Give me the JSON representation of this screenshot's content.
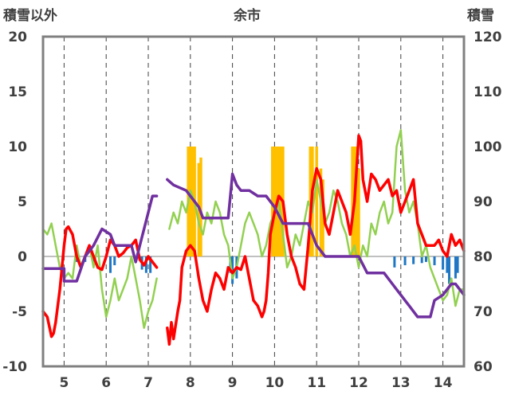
{
  "chart_data": {
    "type": "line",
    "title": "余市",
    "left_axis_label": "積雪以外",
    "right_axis_label": "積雪",
    "ylim_left": [
      -10,
      20
    ],
    "ylim_right": [
      60,
      120
    ],
    "y_ticks_left": [
      "-10",
      "-5",
      "0",
      "5",
      "10",
      "15",
      "20"
    ],
    "y_ticks_right": [
      "60",
      "70",
      "80",
      "90",
      "100",
      "110",
      "120"
    ],
    "xlim": [
      4.5,
      14.5
    ],
    "x_ticks": [
      "5",
      "6",
      "7",
      "8",
      "9",
      "10",
      "11",
      "12",
      "13",
      "14"
    ],
    "grid": "vertical dashed at day boundaries",
    "colors": {
      "red_series": "#ff0000",
      "green_series": "#92d050",
      "purple_series": "#7030a0",
      "orange_bars": "#ffc000",
      "blue_bars": "#1f77c4",
      "frame": "#808080"
    },
    "series": [
      {
        "axis": "left",
        "color": "red",
        "x": [
          4.5,
          4.6,
          4.7,
          4.75,
          4.8,
          4.9,
          5.0,
          5.05,
          5.1,
          5.2,
          5.3,
          5.4,
          5.5,
          5.6,
          5.7,
          5.8,
          5.9,
          6.0,
          6.1,
          6.2,
          6.3,
          6.4,
          6.5,
          6.6,
          6.7,
          6.8,
          6.9,
          7.0,
          7.1,
          7.2
        ],
        "y": [
          -5,
          -5.5,
          -7.3,
          -7,
          -6,
          -3,
          1,
          2.5,
          2.7,
          2,
          0,
          -1,
          0,
          1,
          0,
          -1,
          -1.2,
          0,
          1.5,
          1,
          0,
          0.3,
          0.8,
          1,
          1.5,
          -0.3,
          -0.8,
          0,
          -0.5,
          -1
        ]
      },
      {
        "axis": "left",
        "color": "red",
        "x": [
          7.45,
          7.5,
          7.55,
          7.6,
          7.7,
          7.75,
          7.8,
          7.9,
          8.0,
          8.1,
          8.2,
          8.3,
          8.4,
          8.5,
          8.6,
          8.7,
          8.8,
          8.9,
          9.0,
          9.1,
          9.2,
          9.3,
          9.4,
          9.5,
          9.6,
          9.7,
          9.75,
          9.8,
          9.85,
          9.9,
          10.0,
          10.1,
          10.2,
          10.3,
          10.4,
          10.5,
          10.6,
          10.7,
          10.8,
          10.9,
          11.0,
          11.1,
          11.2,
          11.3,
          11.4,
          11.5,
          11.6,
          11.7,
          11.8,
          11.9,
          12.0,
          12.05,
          12.1,
          12.2,
          12.3,
          12.4,
          12.5,
          12.6,
          12.7,
          12.8,
          12.9,
          13.0,
          13.1,
          13.2,
          13.3,
          13.4,
          13.5,
          13.6,
          13.7,
          13.8,
          13.9,
          14.0,
          14.1,
          14.2,
          14.3,
          14.4,
          14.5
        ],
        "y": [
          -6.5,
          -8,
          -6,
          -7.5,
          -5,
          -4,
          -1,
          0.5,
          1,
          0.5,
          -2,
          -4,
          -5,
          -3,
          -1.5,
          -2,
          -3,
          -1,
          -1.5,
          -1,
          -1.2,
          0,
          -2,
          -4,
          -4.5,
          -5.5,
          -5,
          -4,
          -1.5,
          2,
          4,
          5.5,
          5,
          2,
          0,
          -1,
          -2.5,
          -3,
          1,
          6,
          8,
          7,
          3,
          2,
          4,
          6,
          5,
          4,
          2,
          5,
          11,
          10.5,
          7,
          5,
          7.5,
          7,
          6,
          6.5,
          7,
          5.5,
          6,
          4,
          5,
          6,
          7,
          3,
          2,
          1,
          1,
          1,
          1.5,
          0.5,
          0,
          2,
          1,
          1.5,
          0.5
        ]
      },
      {
        "axis": "left",
        "color": "green",
        "x": [
          4.5,
          4.6,
          4.7,
          4.8,
          4.9,
          5.0,
          5.1,
          5.2,
          5.3,
          5.4,
          5.5,
          5.6,
          5.7,
          5.8,
          5.9,
          6.0,
          6.1,
          6.2,
          6.3,
          6.4,
          6.5,
          6.6,
          6.7,
          6.8,
          6.9,
          7.0,
          7.1,
          7.2
        ],
        "y": [
          2.5,
          2,
          3,
          1,
          -1,
          -2,
          -1.5,
          -2,
          1,
          -1,
          0,
          1,
          -1,
          1,
          -3,
          -5.5,
          -4,
          -2,
          -4,
          -3,
          -2,
          0,
          -2,
          -4,
          -6.5,
          -5,
          -4,
          -2
        ]
      },
      {
        "axis": "left",
        "color": "green",
        "x": [
          7.5,
          7.6,
          7.7,
          7.8,
          7.9,
          8.0,
          8.1,
          8.2,
          8.3,
          8.4,
          8.5,
          8.6,
          8.7,
          8.8,
          8.9,
          9.0,
          9.1,
          9.2,
          9.3,
          9.4,
          9.5,
          9.6,
          9.7,
          9.8,
          9.9,
          10.0,
          10.1,
          10.2,
          10.3,
          10.4,
          10.5,
          10.6,
          10.7,
          10.8,
          10.9,
          11.0,
          11.1,
          11.2,
          11.3,
          11.4,
          11.5,
          11.6,
          11.7,
          11.8,
          11.9,
          12.0,
          12.1,
          12.2,
          12.3,
          12.4,
          12.5,
          12.6,
          12.7,
          12.8,
          12.9,
          13.0,
          13.1,
          13.2,
          13.3,
          13.4,
          13.5,
          13.6,
          13.7,
          13.8,
          13.9,
          14.0,
          14.1,
          14.2,
          14.3,
          14.4,
          14.5
        ],
        "y": [
          2.5,
          4,
          3,
          5,
          4,
          6,
          5,
          3,
          2,
          4,
          3,
          5,
          4,
          2,
          1,
          -2,
          -1,
          1,
          3,
          4,
          3,
          2,
          0,
          1,
          3,
          4,
          5,
          2,
          -1,
          0,
          2,
          1,
          3,
          5,
          4,
          7,
          5,
          3,
          4,
          6,
          5,
          3,
          2,
          0,
          1,
          -1,
          1,
          0,
          3,
          2,
          4,
          5,
          3,
          4,
          10,
          11.5,
          6,
          4,
          5,
          3,
          0,
          1,
          -1,
          -2,
          -3,
          -4,
          -3.5,
          -2,
          -4.5,
          -3,
          -3
        ]
      },
      {
        "axis": "right",
        "color": "purple",
        "x": [
          4.5,
          5.0,
          5.0,
          5.3,
          5.5,
          5.7,
          5.9,
          6.1,
          6.2,
          6.3,
          6.6,
          6.7,
          6.8,
          6.9,
          7.1,
          7.2
        ],
        "y": [
          77.8,
          77.8,
          75.5,
          75.5,
          80,
          82,
          85,
          84,
          82,
          82,
          82,
          79,
          82,
          85,
          91,
          91
        ]
      },
      {
        "axis": "right",
        "color": "purple",
        "x": [
          7.45,
          7.6,
          7.9,
          8.1,
          8.2,
          8.3,
          8.5,
          8.7,
          8.9,
          9.0,
          9.1,
          9.2,
          9.4,
          9.6,
          9.8,
          10.0,
          10.2,
          10.4,
          10.6,
          10.8,
          11.0,
          11.2,
          11.4,
          11.6,
          11.8,
          12.0,
          12.2,
          12.4,
          12.6,
          12.8,
          12.9,
          13.0,
          13.2,
          13.4,
          13.6,
          13.7,
          13.8,
          14.0,
          14.2,
          14.3,
          14.5
        ],
        "y": [
          94,
          93,
          92,
          90,
          89,
          87,
          87,
          87,
          87,
          95,
          93,
          92,
          92,
          91,
          91,
          89,
          86,
          86,
          86,
          86,
          82,
          80,
          80,
          80,
          80,
          80,
          77,
          77,
          77,
          75,
          74,
          73,
          71,
          69,
          69,
          69,
          72,
          73,
          75,
          75,
          73
        ]
      }
    ],
    "orange_bars_left": [
      {
        "x": 7.95,
        "y": 10
      },
      {
        "x": 8.0,
        "y": 10
      },
      {
        "x": 8.05,
        "y": 10
      },
      {
        "x": 8.1,
        "y": 10
      },
      {
        "x": 8.2,
        "y": 8.5
      },
      {
        "x": 8.25,
        "y": 9
      },
      {
        "x": 9.95,
        "y": 10
      },
      {
        "x": 10.0,
        "y": 10
      },
      {
        "x": 10.05,
        "y": 10
      },
      {
        "x": 10.1,
        "y": 10
      },
      {
        "x": 10.15,
        "y": 10
      },
      {
        "x": 10.2,
        "y": 10
      },
      {
        "x": 10.85,
        "y": 10
      },
      {
        "x": 10.9,
        "y": 10
      },
      {
        "x": 11.0,
        "y": 10
      },
      {
        "x": 11.1,
        "y": 8
      },
      {
        "x": 11.15,
        "y": 7
      },
      {
        "x": 11.85,
        "y": 10
      },
      {
        "x": 11.9,
        "y": 10
      },
      {
        "x": 11.95,
        "y": 10
      },
      {
        "x": 12.0,
        "y": 8
      }
    ],
    "blue_bars_left": [
      {
        "x": 5.3,
        "y": -0.5
      },
      {
        "x": 5.5,
        "y": -0.5
      },
      {
        "x": 5.7,
        "y": -0.7
      },
      {
        "x": 6.1,
        "y": -1.5
      },
      {
        "x": 6.2,
        "y": -0.8
      },
      {
        "x": 6.85,
        "y": -1.2
      },
      {
        "x": 6.95,
        "y": -1.5
      },
      {
        "x": 7.05,
        "y": -1.5
      },
      {
        "x": 8.95,
        "y": -1.5
      },
      {
        "x": 9.0,
        "y": -2.5
      },
      {
        "x": 9.1,
        "y": -2
      },
      {
        "x": 12.85,
        "y": -1
      },
      {
        "x": 13.1,
        "y": -0.8
      },
      {
        "x": 13.3,
        "y": -0.7
      },
      {
        "x": 13.5,
        "y": -0.6
      },
      {
        "x": 13.6,
        "y": -0.5
      },
      {
        "x": 13.8,
        "y": -0.8
      },
      {
        "x": 14.0,
        "y": -1.2
      },
      {
        "x": 14.1,
        "y": -1.5
      },
      {
        "x": 14.15,
        "y": -2.5
      },
      {
        "x": 14.3,
        "y": -2
      },
      {
        "x": 14.35,
        "y": -1.5
      }
    ]
  }
}
